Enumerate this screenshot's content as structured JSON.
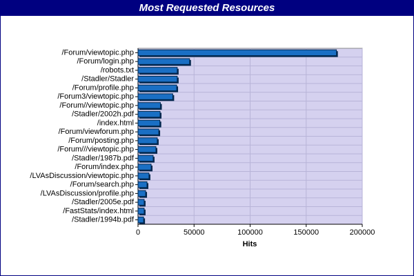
{
  "chart_data": {
    "type": "hbar",
    "title": "Most Requested Resources",
    "x_label": "Hits",
    "categories": [
      "/Forum/viewtopic.php",
      "/Forum/login.php",
      "/robots.txt",
      "/Stadler/Stadler",
      "/Forum/profile.php",
      "/Forum3/viewtopic.php",
      "/Forum//viewtopic.php",
      "/Stadler/2002h.pdf",
      "/index.html",
      "/Forum/viewforum.php",
      "/Forum/posting.php",
      "/Forum///viewtopic.php",
      "/Stadler/1987b.pdf",
      "/Forum/index.php",
      "/LVAsDiscussion/viewtopic.php",
      "/Forum/search.php",
      "/LVAsDiscussion/profile.php",
      "/Stadler/2005e.pdf",
      "/FastStats/index.html",
      "/Stadler/1994b.pdf"
    ],
    "values": [
      177000,
      46000,
      35000,
      35000,
      34500,
      31000,
      20000,
      19700,
      19500,
      18500,
      17200,
      16000,
      13500,
      11700,
      9800,
      8000,
      6800,
      5500,
      5500,
      5000
    ],
    "color": "#1a6fc4",
    "xlim": [
      0,
      200000
    ],
    "xticks": [
      0,
      50000,
      100000,
      150000,
      200000
    ],
    "grid": true
  }
}
